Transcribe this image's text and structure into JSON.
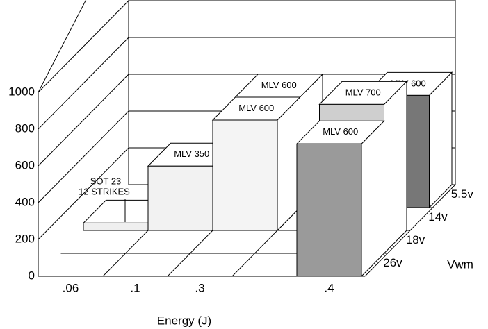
{
  "chart_data": {
    "type": "bar3d",
    "categories": [
      ".06",
      ".1",
      ".3",
      ".4"
    ],
    "x_label": "Energy (J)",
    "depth_label": "Vwm",
    "series": [
      {
        "name": "26v",
        "values": [
          null,
          null,
          null,
          720
        ],
        "colors": [
          null,
          null,
          null,
          "#9a9a9a"
        ],
        "bar_labels": [
          null,
          null,
          null,
          "MLV 600"
        ]
      },
      {
        "name": "18v",
        "values": [
          null,
          null,
          null,
          810
        ],
        "colors": [
          null,
          null,
          null,
          "#cfcfcf"
        ],
        "bar_labels": [
          null,
          null,
          null,
          "MLV 700"
        ]
      },
      {
        "name": "14v",
        "values": [
          40,
          350,
          600,
          null
        ],
        "colors": [
          "#efefef",
          "#f2f2f2",
          "#f4f4f4",
          null
        ],
        "bar_labels": [
          null,
          "MLV 350",
          "MLV 600",
          null
        ]
      },
      {
        "name": "5.5v",
        "values": [
          null,
          null,
          600,
          610
        ],
        "colors": [
          null,
          null,
          "#ffffff",
          "#777777"
        ],
        "bar_labels": [
          null,
          null,
          "MLV 600",
          "MLV 600"
        ]
      }
    ],
    "annotation": [
      "SOT 23",
      "12 STRIKES"
    ],
    "ylim": [
      0,
      1000
    ],
    "yticks": [
      0,
      200,
      400,
      600,
      800,
      1000
    ],
    "grid": true
  }
}
